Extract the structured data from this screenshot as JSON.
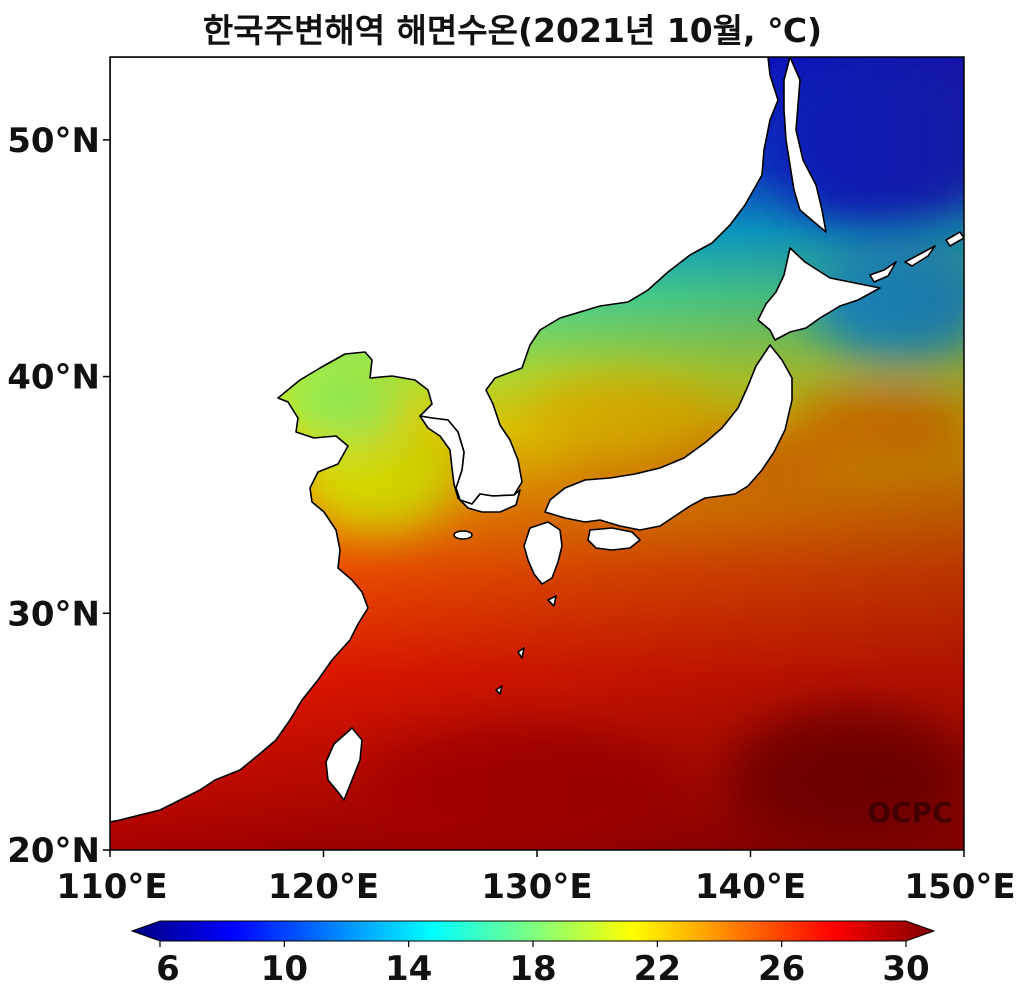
{
  "chart_data": {
    "type": "heatmap",
    "title": "한국주변해역 해면수온(2021년 10월, ℃)",
    "xlabel": "",
    "ylabel": "",
    "xlim": [
      110,
      150
    ],
    "ylim": [
      20,
      53.5
    ],
    "x_ticks": [
      110,
      120,
      130,
      140,
      150
    ],
    "x_tick_labels": [
      "110°E",
      "120°E",
      "130°E",
      "140°E",
      "150°E"
    ],
    "y_ticks": [
      20,
      30,
      40,
      50
    ],
    "y_tick_labels": [
      "20°N",
      "30°N",
      "40°N",
      "50°N"
    ],
    "colorbar": {
      "min": 6,
      "max": 30,
      "extend": "both",
      "colormap": "jet",
      "ticks": [
        6,
        10,
        14,
        18,
        22,
        26,
        30
      ],
      "tick_labels": [
        "6",
        "10",
        "14",
        "18",
        "22",
        "26",
        "30"
      ],
      "colors": [
        "#00007f",
        "#0000ff",
        "#007fff",
        "#00ffff",
        "#7fff7f",
        "#ffff00",
        "#ff7f00",
        "#ff0000",
        "#7f0000"
      ]
    },
    "watermark": "OCPC",
    "approx_sst_samples": [
      {
        "lon": 147,
        "lat": 50,
        "sst": 9
      },
      {
        "lon": 145,
        "lat": 44,
        "sst": 12
      },
      {
        "lon": 136,
        "lat": 45,
        "sst": 14
      },
      {
        "lon": 133,
        "lat": 41,
        "sst": 18
      },
      {
        "lon": 134,
        "lat": 38,
        "sst": 21
      },
      {
        "lon": 140,
        "lat": 41,
        "sst": 19
      },
      {
        "lon": 146,
        "lat": 40,
        "sst": 18
      },
      {
        "lon": 123,
        "lat": 38,
        "sst": 19
      },
      {
        "lon": 124,
        "lat": 35,
        "sst": 22
      },
      {
        "lon": 127,
        "lat": 32,
        "sst": 24
      },
      {
        "lon": 145,
        "lat": 35,
        "sst": 25
      },
      {
        "lon": 130,
        "lat": 27,
        "sst": 27
      },
      {
        "lon": 140,
        "lat": 28,
        "sst": 27
      },
      {
        "lon": 120,
        "lat": 24,
        "sst": 28
      },
      {
        "lon": 145,
        "lat": 22,
        "sst": 30
      }
    ]
  }
}
